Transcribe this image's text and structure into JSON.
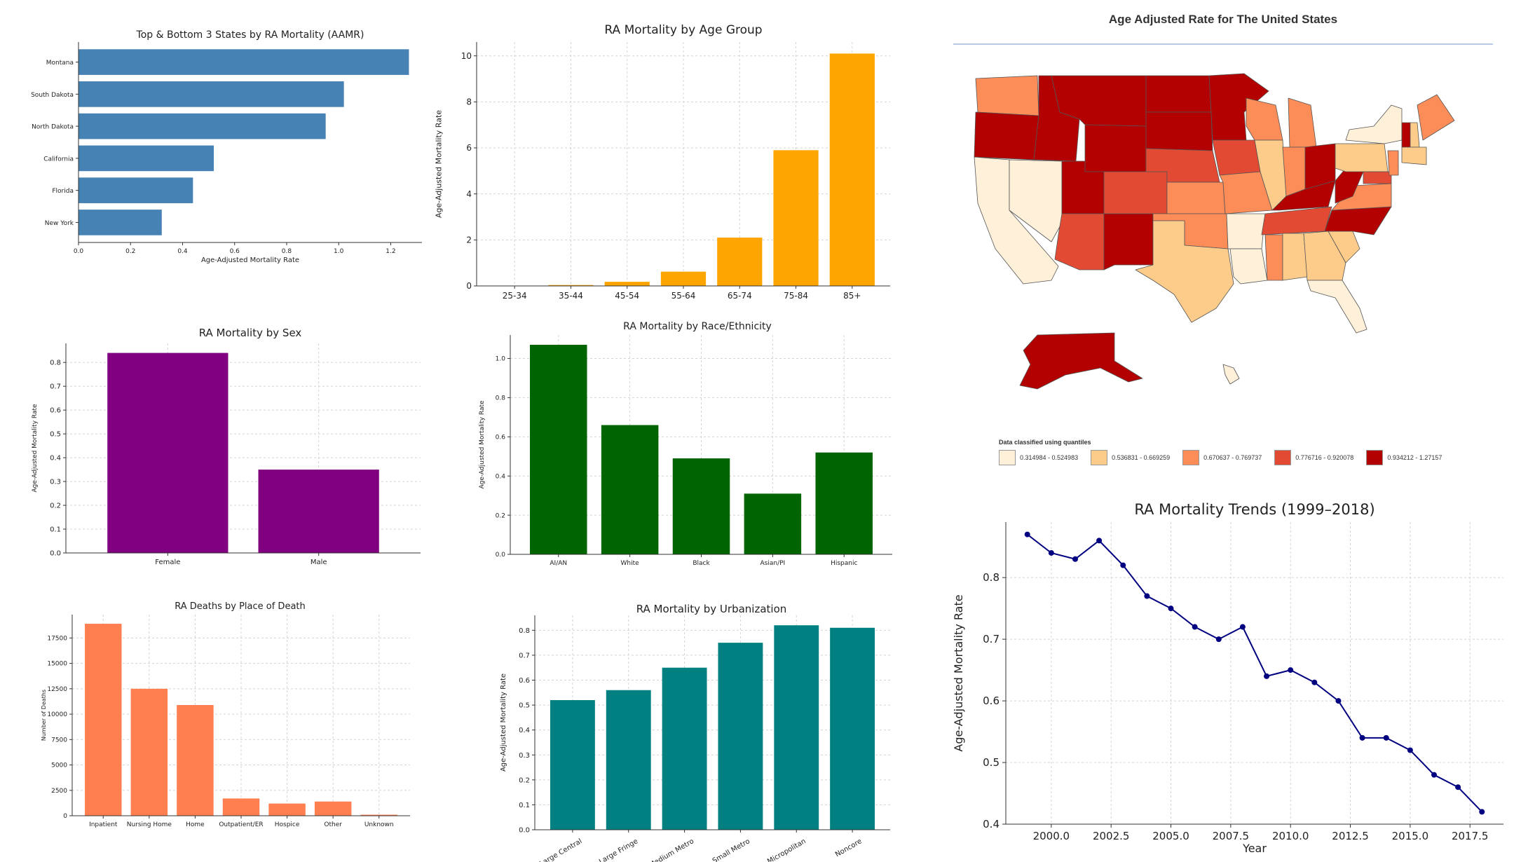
{
  "chart_data": [
    {
      "id": "top_bottom_states",
      "type": "bar",
      "orientation": "horizontal",
      "title": "Top & Bottom 3 States by RA Mortality (AAMR)",
      "xlabel": "Age-Adjusted Mortality Rate",
      "ylabel": "",
      "categories": [
        "Montana",
        "South Dakota",
        "North Dakota",
        "California",
        "Florida",
        "New York"
      ],
      "values": [
        1.27,
        1.02,
        0.95,
        0.52,
        0.44,
        0.32
      ],
      "xlim": [
        0,
        1.32
      ],
      "ticks": [
        0.0,
        0.2,
        0.4,
        0.6,
        0.8,
        1.0,
        1.2
      ],
      "tick_labels": [
        "0.0",
        "0.2",
        "0.4",
        "0.6",
        "0.8",
        "1.0",
        "1.2"
      ],
      "color": "#4682b4",
      "grid": false
    },
    {
      "id": "age_group",
      "type": "bar",
      "title": "RA Mortality by Age Group",
      "xlabel": "",
      "ylabel": "Age-Adjusted Mortality Rate",
      "categories": [
        "25-34",
        "35-44",
        "45-54",
        "55-64",
        "65-74",
        "75-84",
        "85+"
      ],
      "values": [
        0.01,
        0.04,
        0.18,
        0.62,
        2.1,
        5.9,
        10.1
      ],
      "ylim": [
        0,
        10.6
      ],
      "ticks": [
        0,
        2,
        4,
        6,
        8,
        10
      ],
      "tick_labels": [
        "0",
        "2",
        "4",
        "6",
        "8",
        "10"
      ],
      "color": "#ffa500",
      "grid": true
    },
    {
      "id": "sex",
      "type": "bar",
      "title": "RA Mortality by Sex",
      "xlabel": "",
      "ylabel": "Age-Adjusted Mortality Rate",
      "categories": [
        "Female",
        "Male"
      ],
      "values": [
        0.84,
        0.35
      ],
      "ylim": [
        0,
        0.88
      ],
      "ticks": [
        0.0,
        0.1,
        0.2,
        0.3,
        0.4,
        0.5,
        0.6,
        0.7,
        0.8
      ],
      "tick_labels": [
        "0.0",
        "0.1",
        "0.2",
        "0.3",
        "0.4",
        "0.5",
        "0.6",
        "0.7",
        "0.8"
      ],
      "color": "#800080",
      "grid": true
    },
    {
      "id": "race",
      "type": "bar",
      "title": "RA Mortality by Race/Ethnicity",
      "xlabel": "",
      "ylabel": "Age-Adjusted Mortality Rate",
      "categories": [
        "AI/AN",
        "White",
        "Black",
        "Asian/PI",
        "Hispanic"
      ],
      "values": [
        1.07,
        0.66,
        0.49,
        0.31,
        0.52
      ],
      "ylim": [
        0,
        1.12
      ],
      "ticks": [
        0.0,
        0.2,
        0.4,
        0.6,
        0.8,
        1.0
      ],
      "tick_labels": [
        "0.0",
        "0.2",
        "0.4",
        "0.6",
        "0.8",
        "1.0"
      ],
      "color": "#006400",
      "grid": true
    },
    {
      "id": "place_of_death",
      "type": "bar",
      "title": "RA Deaths by Place of Death",
      "xlabel": "",
      "ylabel": "Number of Deaths",
      "categories": [
        "Inpatient",
        "Nursing Home",
        "Home",
        "Outpatient/ER",
        "Hospice",
        "Other",
        "Unknown"
      ],
      "values": [
        18900,
        12500,
        10900,
        1700,
        1200,
        1400,
        100
      ],
      "ylim": [
        0,
        19800
      ],
      "ticks": [
        0,
        2500,
        5000,
        7500,
        10000,
        12500,
        15000,
        17500
      ],
      "tick_labels": [
        "0",
        "2500",
        "5000",
        "7500",
        "10000",
        "12500",
        "15000",
        "17500"
      ],
      "color": "#ff7f50",
      "grid": true
    },
    {
      "id": "urbanization",
      "type": "bar",
      "title": "RA Mortality by Urbanization",
      "xlabel": "",
      "ylabel": "Age-Adjusted Mortality Rate",
      "categories": [
        "Large Central",
        "Large Fringe",
        "Medium Metro",
        "Small Metro",
        "Micropolitan",
        "Noncore"
      ],
      "values": [
        0.52,
        0.56,
        0.65,
        0.75,
        0.82,
        0.81
      ],
      "ylim": [
        0,
        0.86
      ],
      "ticks": [
        0.0,
        0.1,
        0.2,
        0.3,
        0.4,
        0.5,
        0.6,
        0.7,
        0.8
      ],
      "tick_labels": [
        "0.0",
        "0.1",
        "0.2",
        "0.3",
        "0.4",
        "0.5",
        "0.6",
        "0.7",
        "0.8"
      ],
      "color": "#008080",
      "grid": true,
      "rotated_labels": true
    },
    {
      "id": "trends",
      "type": "line",
      "title": "RA Mortality Trends (1999–2018)",
      "xlabel": "Year",
      "ylabel": "Age-Adjusted Mortality Rate",
      "x": [
        1999,
        2000,
        2001,
        2002,
        2003,
        2004,
        2005,
        2006,
        2007,
        2008,
        2009,
        2010,
        2011,
        2012,
        2013,
        2014,
        2015,
        2016,
        2017,
        2018
      ],
      "y": [
        0.87,
        0.84,
        0.83,
        0.86,
        0.82,
        0.77,
        0.75,
        0.72,
        0.7,
        0.72,
        0.64,
        0.65,
        0.63,
        0.6,
        0.54,
        0.54,
        0.52,
        0.48,
        0.46,
        0.42
      ],
      "xlim": [
        1998.1,
        2018.9
      ],
      "ylim": [
        0.4,
        0.89
      ],
      "xticks": [
        2000.0,
        2002.5,
        2005.0,
        2007.5,
        2010.0,
        2012.5,
        2015.0,
        2017.5
      ],
      "xtick_labels": [
        "2000.0",
        "2002.5",
        "2005.0",
        "2007.5",
        "2010.0",
        "2012.5",
        "2015.0",
        "2017.5"
      ],
      "yticks": [
        0.4,
        0.5,
        0.6,
        0.7,
        0.8
      ],
      "ytick_labels": [
        "0.4",
        "0.5",
        "0.6",
        "0.7",
        "0.8"
      ],
      "color": "#000080",
      "grid": true
    }
  ],
  "map": {
    "title": "Age Adjusted Rate for The United States",
    "legend_title": "Data classified using quantiles",
    "legend": [
      {
        "label": "0.314984 - 0.524983",
        "color": "#fef0d9"
      },
      {
        "label": "0.536831 - 0.669259",
        "color": "#fdcc8a"
      },
      {
        "label": "0.670637 - 0.769737",
        "color": "#fc8d59"
      },
      {
        "label": "0.776716 - 0.920078",
        "color": "#e34a33"
      },
      {
        "label": "0.934212 - 1.27157",
        "color": "#b30000"
      }
    ]
  }
}
